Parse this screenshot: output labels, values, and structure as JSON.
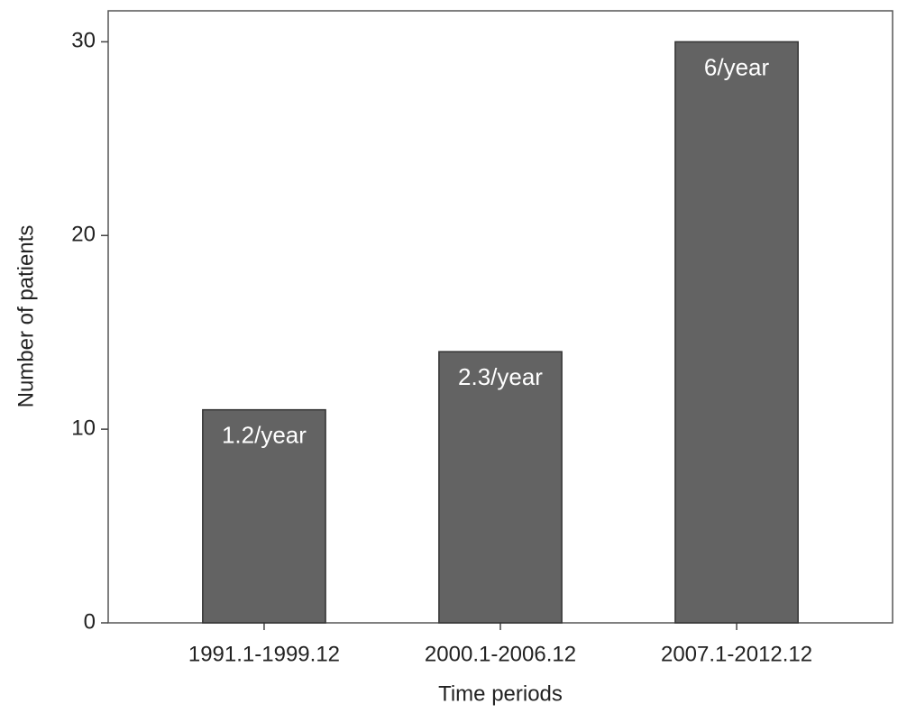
{
  "chart_data": {
    "type": "bar",
    "x_label": "Time periods",
    "y_label": "Number of patients",
    "categories": [
      "1991.1-1999.12",
      "2000.1-2006.12",
      "2007.1-2012.12"
    ],
    "values": [
      11,
      14,
      30
    ],
    "annotations": [
      "1.2/year",
      "2.3/year",
      "6/year"
    ],
    "color": "#636363",
    "ylim": [
      0,
      31.6
    ],
    "yticks": [
      0,
      10,
      20,
      30
    ],
    "grid": false
  }
}
